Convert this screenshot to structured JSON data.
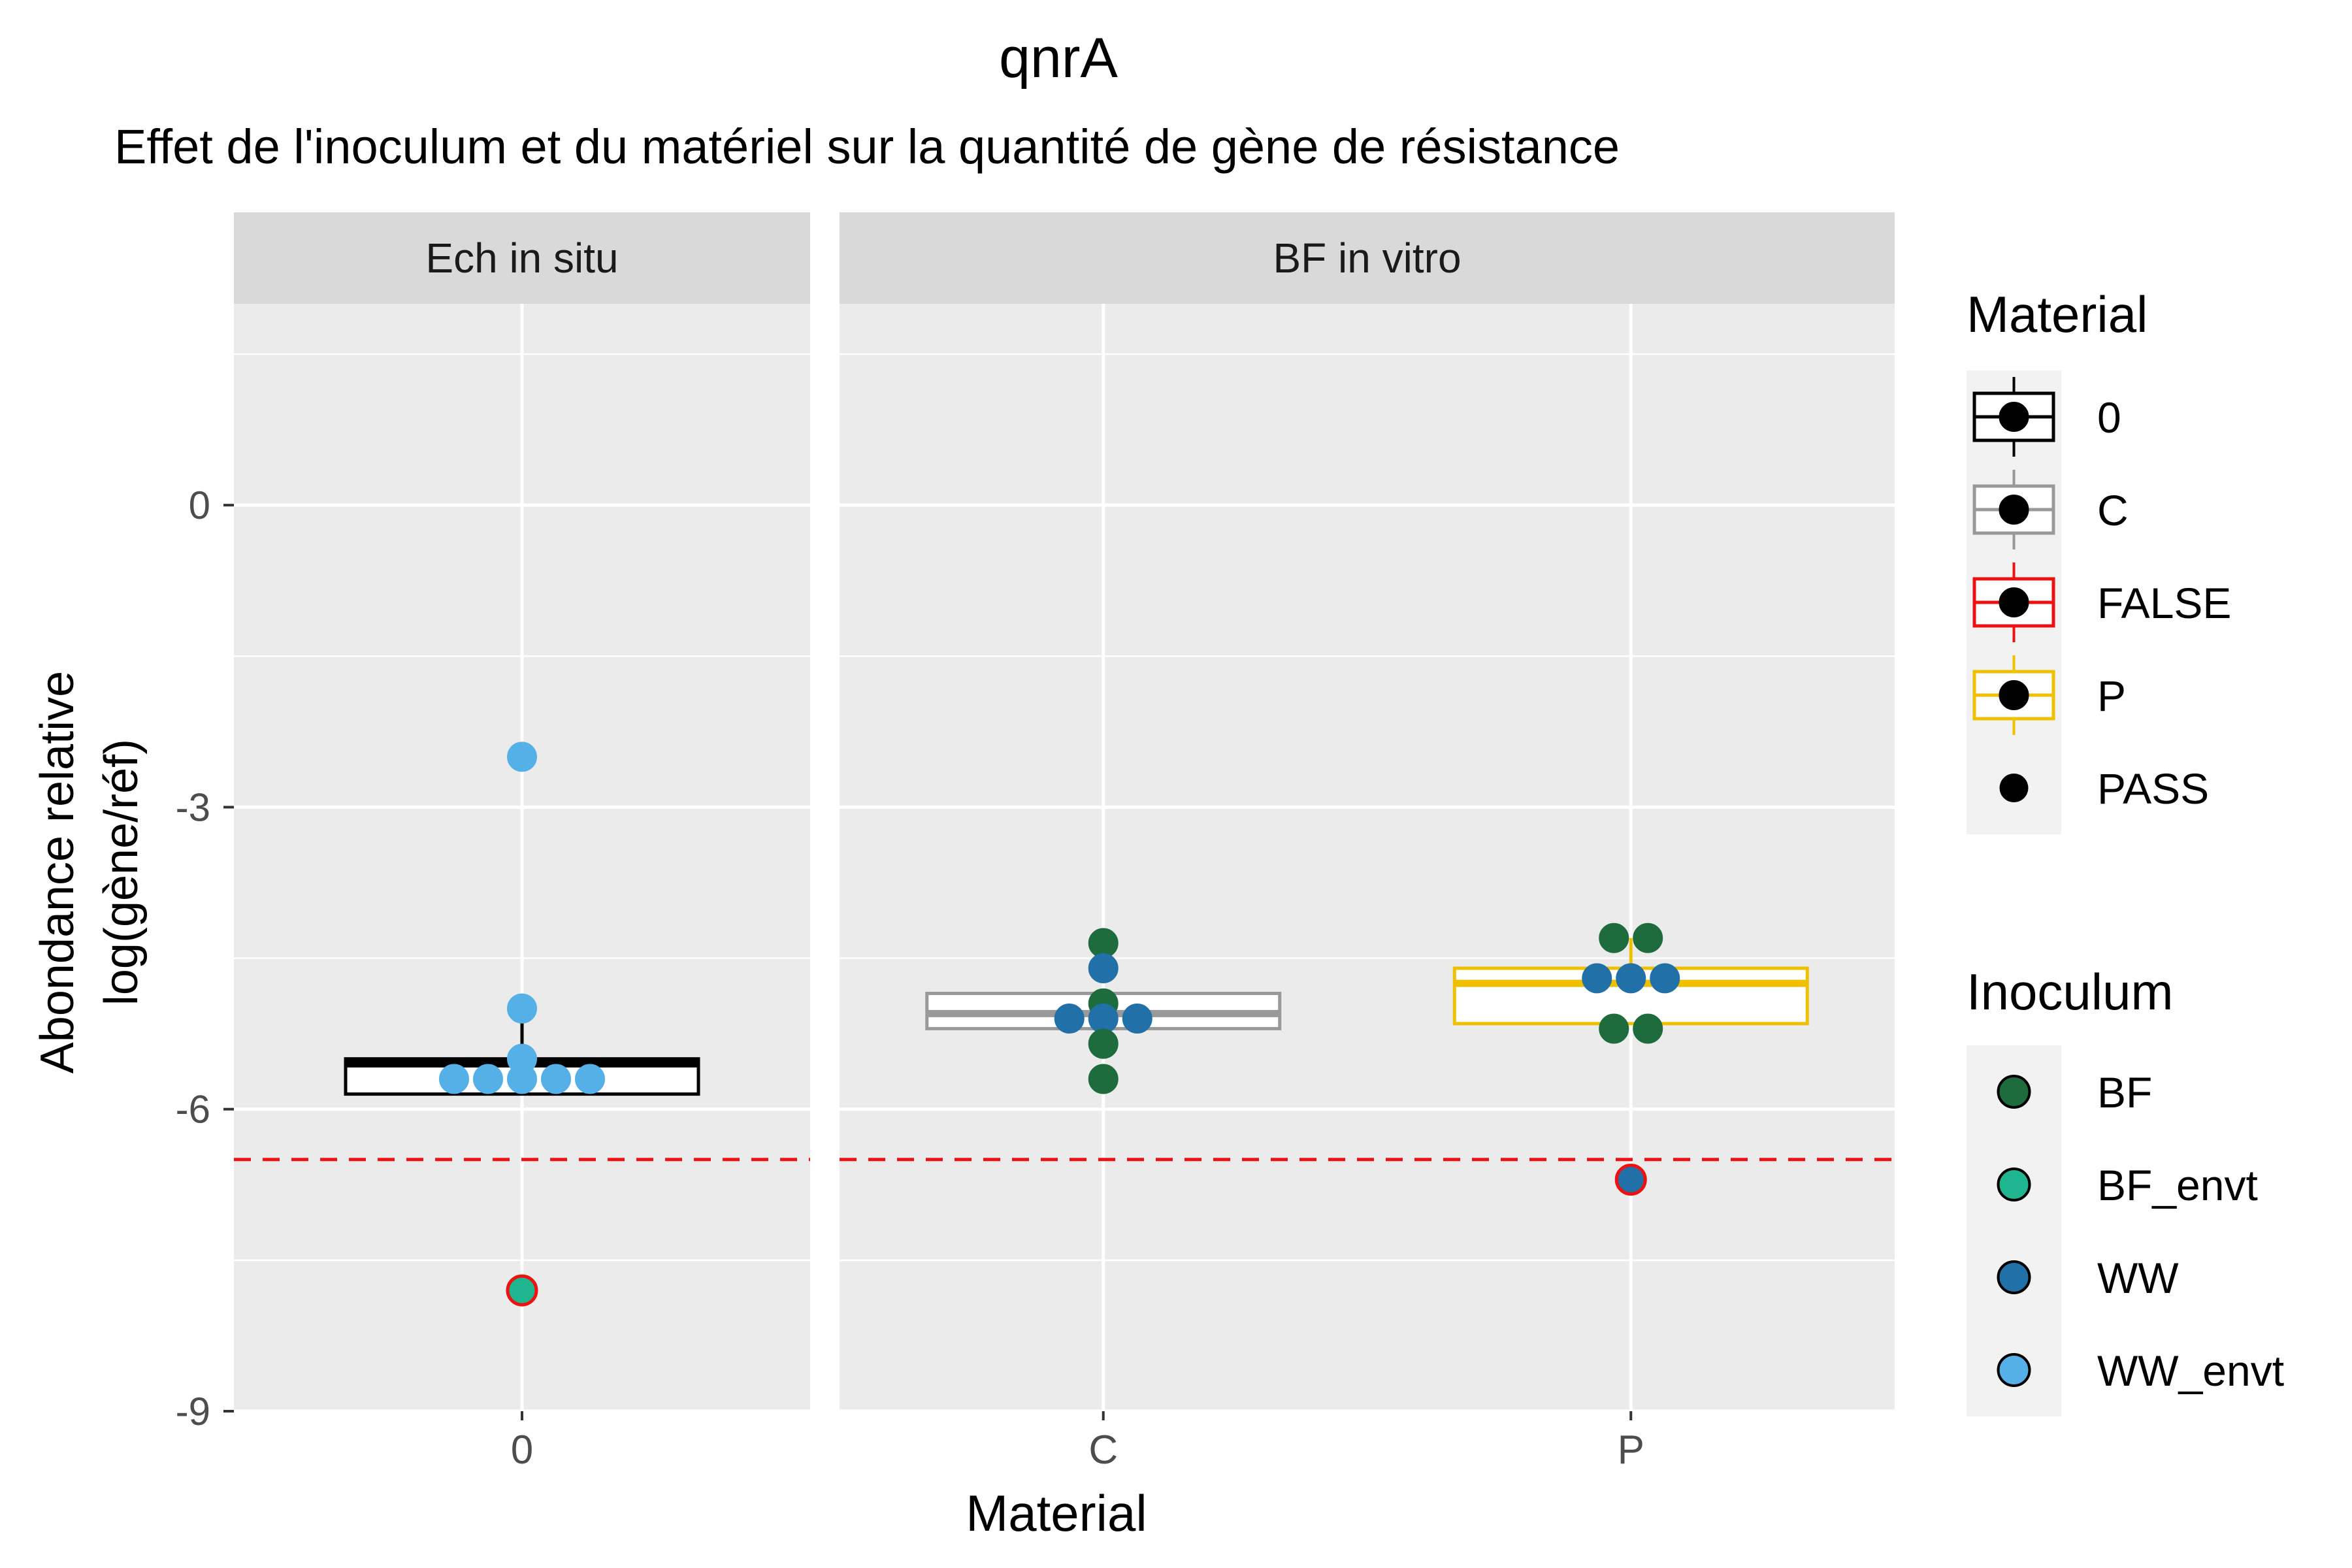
{
  "chart_data": {
    "type": "box",
    "title": "qnrA",
    "subtitle": "Effet de l'inoculum et du matériel sur la quantité de gène de résistance",
    "xlabel": "Material",
    "ylabel_line1": "Abondance relative",
    "ylabel_line2": "log(gène/réf)",
    "ylim": [
      -9,
      2
    ],
    "yticks": [
      0,
      -3,
      -6,
      -9
    ],
    "ytick_labels": [
      "0",
      "-3",
      "-6",
      "-9"
    ],
    "threshold": -6.5,
    "facets": [
      {
        "label": "Ech in situ",
        "categories": [
          "0"
        ],
        "boxes": [
          {
            "category": "0",
            "material": "0",
            "q1": -5.85,
            "median": -5.55,
            "q3": -5.5,
            "whisker_low": -5.85,
            "whisker_high": -5.0
          }
        ],
        "points": [
          {
            "category": "0",
            "y": -2.5,
            "offset": 0,
            "inoculum": "WW_envt",
            "pass": true
          },
          {
            "category": "0",
            "y": -5.0,
            "offset": 0,
            "inoculum": "WW_envt",
            "pass": true
          },
          {
            "category": "0",
            "y": -5.5,
            "offset": 0,
            "inoculum": "WW_envt",
            "pass": true
          },
          {
            "category": "0",
            "y": -5.7,
            "offset": -2,
            "inoculum": "WW_envt",
            "pass": true
          },
          {
            "category": "0",
            "y": -5.7,
            "offset": -1,
            "inoculum": "WW_envt",
            "pass": true
          },
          {
            "category": "0",
            "y": -5.7,
            "offset": 0,
            "inoculum": "WW_envt",
            "pass": true
          },
          {
            "category": "0",
            "y": -5.7,
            "offset": 1,
            "inoculum": "WW_envt",
            "pass": true
          },
          {
            "category": "0",
            "y": -5.7,
            "offset": 2,
            "inoculum": "WW_envt",
            "pass": true
          },
          {
            "category": "0",
            "y": -7.8,
            "offset": 0,
            "inoculum": "BF_envt",
            "pass": false
          }
        ]
      },
      {
        "label": "BF in vitro",
        "categories": [
          "C",
          "P"
        ],
        "boxes": [
          {
            "category": "C",
            "material": "C",
            "q1": -5.2,
            "median": -5.05,
            "q3": -4.85,
            "whisker_low": -5.2,
            "whisker_high": -4.85
          },
          {
            "category": "P",
            "material": "P",
            "q1": -5.15,
            "median": -4.75,
            "q3": -4.6,
            "whisker_low": -5.15,
            "whisker_high": -4.3
          }
        ],
        "points": [
          {
            "category": "C",
            "y": -4.35,
            "offset": 0,
            "inoculum": "BF",
            "pass": true
          },
          {
            "category": "C",
            "y": -4.6,
            "offset": 0,
            "inoculum": "WW",
            "pass": true
          },
          {
            "category": "C",
            "y": -4.95,
            "offset": 0,
            "inoculum": "BF",
            "pass": true
          },
          {
            "category": "C",
            "y": -5.1,
            "offset": -1,
            "inoculum": "WW",
            "pass": true
          },
          {
            "category": "C",
            "y": -5.1,
            "offset": 0,
            "inoculum": "WW",
            "pass": true
          },
          {
            "category": "C",
            "y": -5.1,
            "offset": 1,
            "inoculum": "WW",
            "pass": true
          },
          {
            "category": "C",
            "y": -5.35,
            "offset": 0,
            "inoculum": "BF",
            "pass": true
          },
          {
            "category": "C",
            "y": -5.7,
            "offset": 0,
            "inoculum": "BF",
            "pass": true
          },
          {
            "category": "P",
            "y": -4.3,
            "offset": -0.5,
            "inoculum": "BF",
            "pass": true
          },
          {
            "category": "P",
            "y": -4.3,
            "offset": 0.5,
            "inoculum": "BF",
            "pass": true
          },
          {
            "category": "P",
            "y": -4.7,
            "offset": -1,
            "inoculum": "WW",
            "pass": true
          },
          {
            "category": "P",
            "y": -4.7,
            "offset": 0,
            "inoculum": "WW",
            "pass": true
          },
          {
            "category": "P",
            "y": -4.7,
            "offset": 1,
            "inoculum": "WW",
            "pass": true
          },
          {
            "category": "P",
            "y": -5.2,
            "offset": -0.5,
            "inoculum": "BF",
            "pass": true
          },
          {
            "category": "P",
            "y": -5.2,
            "offset": 0.5,
            "inoculum": "BF",
            "pass": true
          },
          {
            "category": "P",
            "y": -6.7,
            "offset": 0,
            "inoculum": "WW",
            "pass": false
          }
        ]
      }
    ],
    "material_colors": {
      "0": "#000000",
      "C": "#999999",
      "FALSE": "#ee1111",
      "P": "#eec000"
    },
    "inoculum_colors": {
      "BF": "#1e6b3e",
      "BF_envt": "#1fb58f",
      "WW": "#2270a8",
      "WW_envt": "#56b0e8"
    },
    "threshold_color": "#ee1111",
    "legends": [
      {
        "title": "Material",
        "position": "right",
        "items": [
          "0",
          "C",
          "FALSE",
          "P",
          "PASS"
        ]
      },
      {
        "title": "Inoculum",
        "position": "right",
        "items": [
          "BF",
          "BF_envt",
          "WW",
          "WW_envt"
        ]
      }
    ]
  }
}
